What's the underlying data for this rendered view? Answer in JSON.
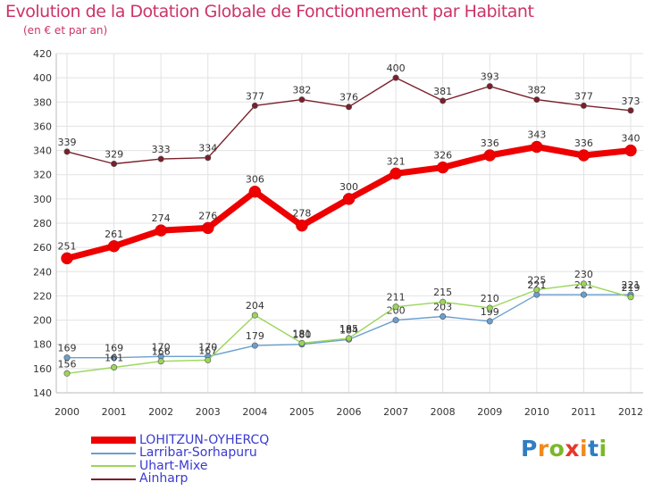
{
  "title": "Evolution de la Dotation Globale de Fonctionnement par Habitant",
  "subtitle": "(en € et par an)",
  "logo": {
    "letters": [
      "P",
      "r",
      "o",
      "x",
      "i",
      "t",
      "i"
    ],
    "colors": [
      "#2f7dc4",
      "#f08a1c",
      "#7ab829",
      "#e8372a",
      "#f08a1c",
      "#2f7dc4",
      "#7ab829"
    ]
  },
  "chart_data": {
    "type": "line",
    "x": [
      "2000",
      "2001",
      "2002",
      "2003",
      "2004",
      "2005",
      "2006",
      "2007",
      "2008",
      "2009",
      "2010",
      "2011",
      "2012"
    ],
    "ylim": [
      140,
      420
    ],
    "yticks": [
      "140",
      "160",
      "180",
      "200",
      "220",
      "240",
      "260",
      "280",
      "300",
      "320",
      "340",
      "360",
      "380",
      "400",
      "420"
    ],
    "grid": true,
    "legend_position": "bottom-left",
    "series": [
      {
        "name": "Ainharp",
        "color": "#7a1f2b",
        "values": [
          339,
          329,
          333,
          334,
          377,
          382,
          376,
          400,
          381,
          393,
          382,
          377,
          373
        ],
        "labels": [
          "339",
          "329",
          "333",
          "334",
          "377",
          "382",
          "376",
          "400",
          "381",
          "393",
          "382",
          "377",
          "373"
        ]
      },
      {
        "name": "Larribar-Sorhapuru",
        "color": "#6a9fcf",
        "values": [
          169,
          169,
          170,
          170,
          179,
          180,
          184,
          200,
          203,
          199,
          221,
          221,
          221
        ],
        "labels": [
          "169",
          "169",
          "170",
          "170",
          "179",
          "180",
          "184",
          "200",
          "203",
          "199",
          "221",
          "221",
          "221"
        ]
      },
      {
        "name": "Uhart-Mixe",
        "color": "#9ad65a",
        "values": [
          156,
          161,
          166,
          167,
          204,
          181,
          185,
          211,
          215,
          210,
          225,
          230,
          219
        ],
        "labels": [
          "156",
          "161",
          "166",
          "167",
          "204",
          "181",
          "185",
          "211",
          "215",
          "210",
          "225",
          "230",
          "219"
        ]
      },
      {
        "name": "LOHITZUN-OYHERCQ",
        "color": "#ee0000",
        "values": [
          251,
          261,
          274,
          276,
          306,
          278,
          300,
          321,
          326,
          336,
          343,
          336,
          340
        ],
        "labels": [
          "251",
          "261",
          "274",
          "276",
          "306",
          "278",
          "300",
          "321",
          "326",
          "336",
          "343",
          "336",
          "340"
        ]
      }
    ],
    "legend": [
      "LOHITZUN-OYHERCQ",
      "Larribar-Sorhapuru",
      "Uhart-Mixe",
      "Ainharp"
    ]
  }
}
